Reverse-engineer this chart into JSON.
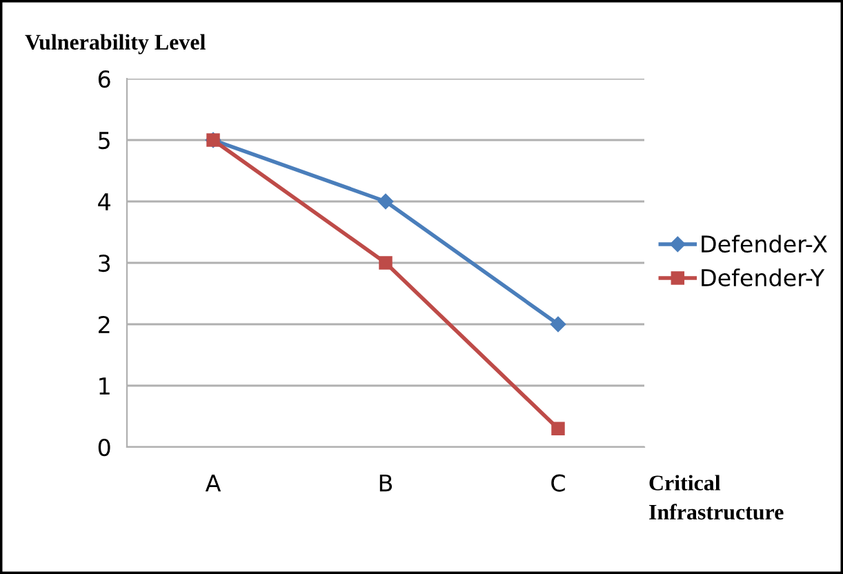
{
  "chart_data": {
    "type": "line",
    "ylabel": "Vulnerability Level",
    "xlabel": "Critical\nInfrastructure",
    "categories": [
      "A",
      "B",
      "C"
    ],
    "series": [
      {
        "name": "Defender-X",
        "color": "#4a7ebb",
        "marker": "diamond",
        "values": [
          5,
          4,
          2
        ]
      },
      {
        "name": "Defender-Y",
        "color": "#be4b48",
        "marker": "square",
        "values": [
          5,
          3,
          0.3
        ]
      }
    ],
    "ylim": [
      0,
      6
    ],
    "yticks": [
      0,
      1,
      2,
      3,
      4,
      5,
      6
    ],
    "grid": "y",
    "legend": "right",
    "line_style": "solid"
  }
}
